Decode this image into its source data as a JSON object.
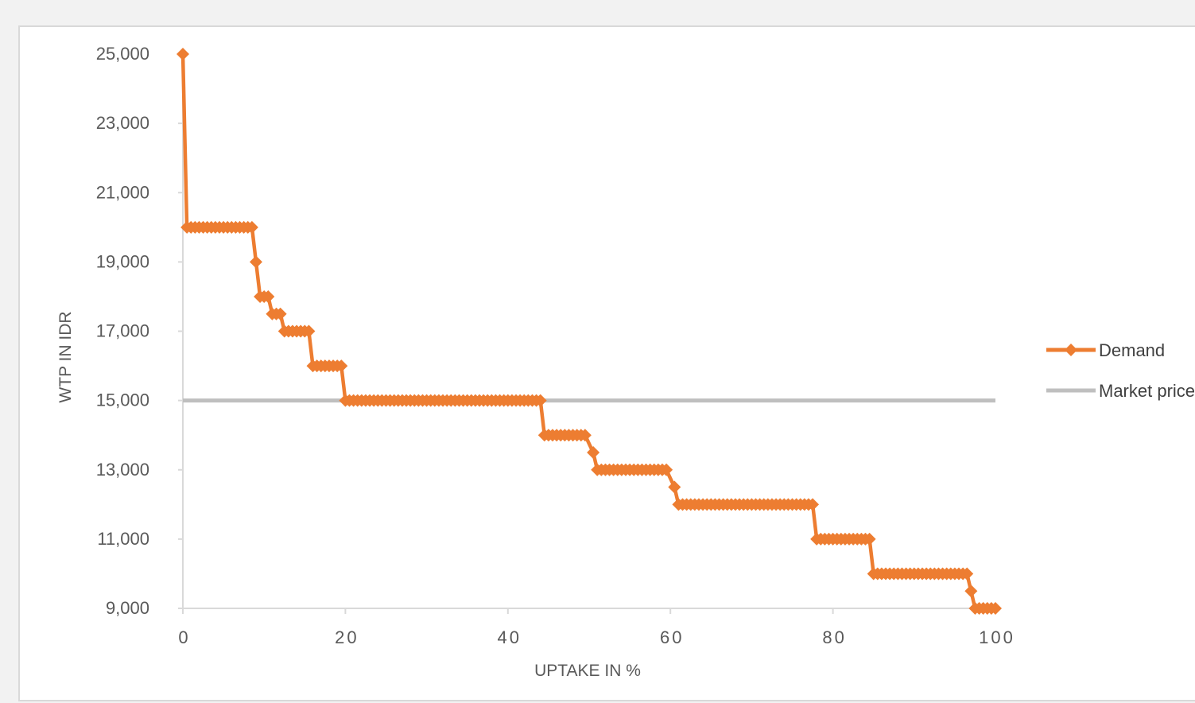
{
  "chart_data": {
    "type": "line",
    "title": "",
    "xlabel": "UPTAKE IN %",
    "ylabel": "WTP IN IDR",
    "xlim": [
      0,
      100
    ],
    "ylim": [
      9000,
      25000
    ],
    "x_ticks": [
      0,
      20,
      40,
      60,
      80,
      100
    ],
    "x_tick_labels": [
      "0",
      "20",
      "40",
      "60",
      "80",
      "100"
    ],
    "y_ticks": [
      9000,
      11000,
      13000,
      15000,
      17000,
      19000,
      21000,
      23000,
      25000
    ],
    "y_tick_labels": [
      "9,000",
      "11,000",
      "13,000",
      "15,000",
      "17,000",
      "19,000",
      "21,000",
      "23,000",
      "25,000"
    ],
    "grid": false,
    "legend_position": "right",
    "series": [
      {
        "name": "Demand",
        "color": "#ed7d31",
        "marker": "diamond",
        "x": [
          0,
          0.5,
          8.5,
          9,
          9.5,
          10.5,
          11,
          12,
          12.5,
          15.5,
          16,
          19.5,
          20,
          44,
          44.5,
          49.5,
          50.5,
          51,
          59.5,
          60.5,
          61,
          77.5,
          78,
          84.5,
          85,
          96.5,
          97,
          97.5,
          100
        ],
        "y": [
          25000,
          20000,
          20000,
          19000,
          18000,
          18000,
          17500,
          17500,
          17000,
          17000,
          16000,
          16000,
          15000,
          15000,
          14000,
          14000,
          13500,
          13000,
          13000,
          12500,
          12000,
          12000,
          11000,
          11000,
          10000,
          10000,
          9500,
          9000,
          9000
        ]
      },
      {
        "name": "Market price",
        "color": "#bfbfbf",
        "marker": "none",
        "x": [
          0,
          100
        ],
        "y": [
          15000,
          15000
        ]
      }
    ]
  }
}
